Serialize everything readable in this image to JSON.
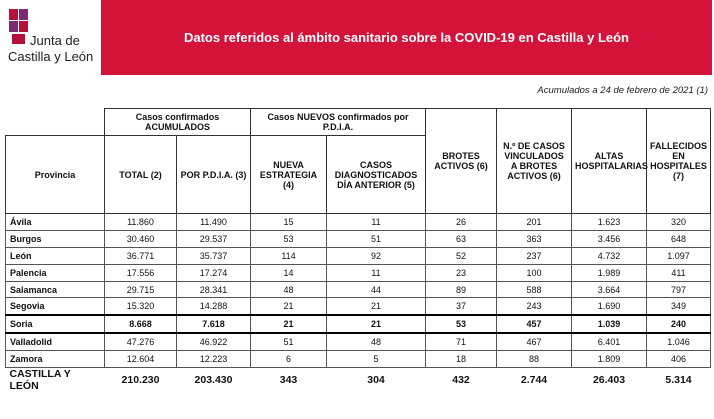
{
  "header": {
    "logo_lines": [
      "Junta de",
      "Castilla y León"
    ],
    "title": "Datos referidos al ámbito sanitario sobre la COVID-19 en Castilla y León"
  },
  "note": "Acumulados a 24 de febrero de 2021 (1)",
  "table": {
    "group_headers": [
      "Casos confirmados ACUMULADOS",
      "Casos NUEVOS confirmados por P.D.I.A."
    ],
    "columns": [
      "Provincia",
      "TOTAL (2)",
      "POR P.D.I.A. (3)",
      "NUEVA ESTRATEGIA (4)",
      "CASOS DIAGNOSTICADOS DÍA ANTERIOR (5)",
      "BROTES ACTIVOS (6)",
      "N.º DE CASOS VINCULADOS A BROTES ACTIVOS (6)",
      "ALTAS HOSPITALARIAS",
      "FALLECIDOS EN HOSPITALES (7)"
    ],
    "rows": [
      [
        "Ávila",
        "11.860",
        "11.490",
        "15",
        "11",
        "26",
        "201",
        "1.623",
        "320"
      ],
      [
        "Burgos",
        "30.460",
        "29.537",
        "53",
        "51",
        "63",
        "363",
        "3.456",
        "648"
      ],
      [
        "León",
        "36.771",
        "35.737",
        "114",
        "92",
        "52",
        "237",
        "4.732",
        "1.097"
      ],
      [
        "Palencia",
        "17.556",
        "17.274",
        "14",
        "11",
        "23",
        "100",
        "1.989",
        "411"
      ],
      [
        "Salamanca",
        "29.715",
        "28.341",
        "48",
        "44",
        "89",
        "588",
        "3.664",
        "797"
      ],
      [
        "Segovia",
        "15.320",
        "14.288",
        "21",
        "21",
        "37",
        "243",
        "1.690",
        "349"
      ],
      [
        "Soria",
        "8.668",
        "7.618",
        "21",
        "21",
        "53",
        "457",
        "1.039",
        "240"
      ],
      [
        "Valladolid",
        "47.276",
        "46.922",
        "51",
        "48",
        "71",
        "467",
        "6.401",
        "1.046"
      ],
      [
        "Zamora",
        "12.604",
        "12.223",
        "6",
        "5",
        "18",
        "88",
        "1.809",
        "406"
      ]
    ],
    "total": [
      "CASTILLA Y LEÓN",
      "210.230",
      "203.430",
      "343",
      "304",
      "432",
      "2.744",
      "26.403",
      "5.314"
    ]
  }
}
